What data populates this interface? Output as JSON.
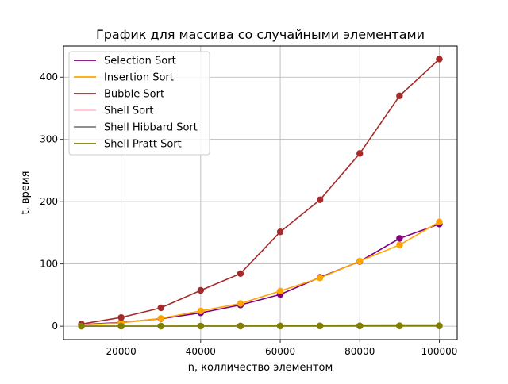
{
  "chart_data": {
    "type": "line",
    "title": "График для массива со случайными элементами",
    "xlabel": "n, колличество элементом",
    "ylabel": "t, время",
    "xlim": [
      5500,
      104500
    ],
    "ylim": [
      -21.5,
      450
    ],
    "grid": true,
    "legend_position": "top-left",
    "x": [
      10000,
      20000,
      30000,
      40000,
      50000,
      60000,
      70000,
      80000,
      90000,
      100000
    ],
    "x_ticks": [
      20000,
      40000,
      60000,
      80000,
      100000
    ],
    "x_tick_labels": [
      "20000",
      "40000",
      "60000",
      "80000",
      "100000"
    ],
    "y_ticks": [
      0,
      100,
      200,
      300,
      400
    ],
    "y_tick_labels": [
      "0",
      "100",
      "200",
      "300",
      "400"
    ],
    "series": [
      {
        "name": "Selection Sort",
        "color": "#800080",
        "values": [
          2.5,
          6,
          12,
          21.5,
          34,
          51,
          78.5,
          104,
          141,
          164
        ]
      },
      {
        "name": "Insertion Sort",
        "color": "#ffa500",
        "values": [
          1.5,
          5.5,
          12.5,
          24.5,
          36.5,
          56.5,
          77.5,
          104.5,
          130.5,
          167.5
        ]
      },
      {
        "name": "Bubble Sort",
        "color": "#a52a2a",
        "values": [
          3.5,
          14,
          29.5,
          57.5,
          84.5,
          151.5,
          203,
          277.5,
          370,
          429
        ]
      },
      {
        "name": "Shell Sort",
        "color": "#ffc0cb",
        "values": [
          0.02,
          0.05,
          0.08,
          0.12,
          0.15,
          0.2,
          0.24,
          0.28,
          0.32,
          0.36
        ]
      },
      {
        "name": "Shell Hibbard Sort",
        "color": "#808080",
        "values": [
          0.02,
          0.04,
          0.07,
          0.1,
          0.13,
          0.17,
          0.2,
          0.24,
          0.27,
          0.31
        ]
      },
      {
        "name": "Shell Pratt Sort",
        "color": "#808000",
        "values": [
          0.05,
          0.1,
          0.17,
          0.24,
          0.32,
          0.4,
          0.48,
          0.56,
          0.64,
          0.72
        ]
      }
    ]
  }
}
